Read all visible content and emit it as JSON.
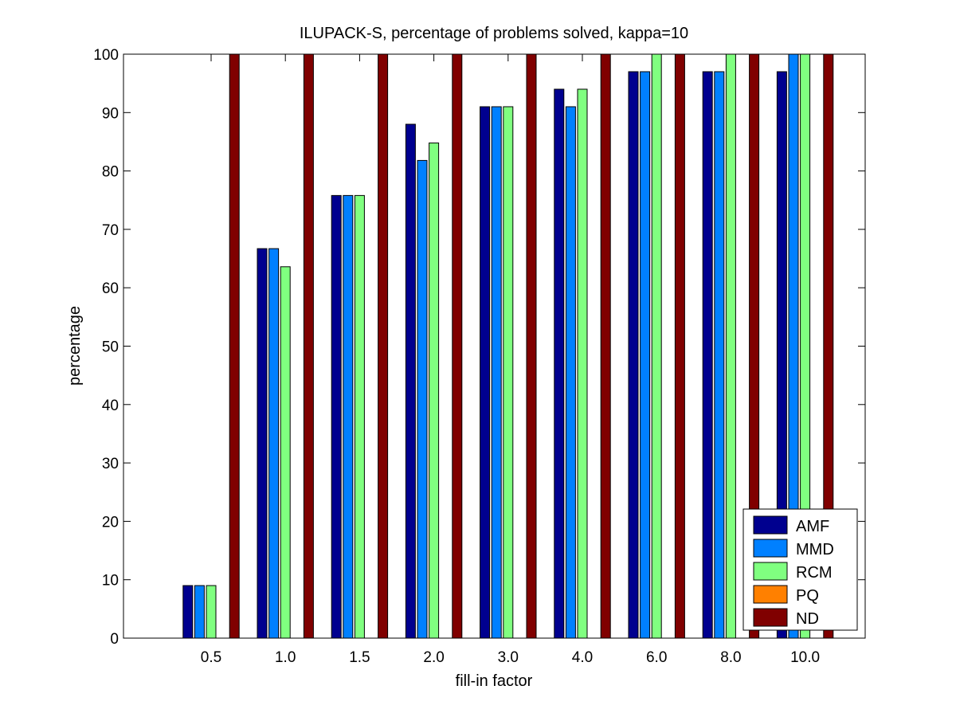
{
  "chart_data": {
    "type": "bar",
    "title": "ILUPACK-S, percentage of problems solved, kappa=10",
    "xlabel": "fill-in factor",
    "ylabel": "percentage",
    "ylim": [
      0,
      100
    ],
    "yticks": [
      "0",
      "10",
      "20",
      "30",
      "40",
      "50",
      "60",
      "70",
      "80",
      "90",
      "100"
    ],
    "categories": [
      "0.5",
      "1.0",
      "1.5",
      "2.0",
      "3.0",
      "4.0",
      "6.0",
      "8.0",
      "10.0"
    ],
    "series": [
      {
        "name": "AMF",
        "color": "#00008f",
        "values": [
          9,
          66.7,
          75.8,
          88,
          91,
          94,
          97,
          97,
          97
        ]
      },
      {
        "name": "MMD",
        "color": "#0080ff",
        "values": [
          9,
          66.7,
          75.8,
          81.8,
          91,
          91,
          97,
          97,
          100
        ]
      },
      {
        "name": "RCM",
        "color": "#80ff80",
        "values": [
          9,
          63.6,
          75.8,
          84.8,
          91,
          94,
          100,
          100,
          100
        ]
      },
      {
        "name": "PQ",
        "color": "#ff8000",
        "values": [
          0,
          0,
          0,
          0,
          0,
          0,
          0,
          0,
          0
        ]
      },
      {
        "name": "ND",
        "color": "#800000",
        "values": [
          100,
          100,
          100,
          100,
          100,
          100,
          100,
          100,
          100
        ]
      }
    ],
    "grid": false,
    "legend_position": "bottom-right"
  }
}
